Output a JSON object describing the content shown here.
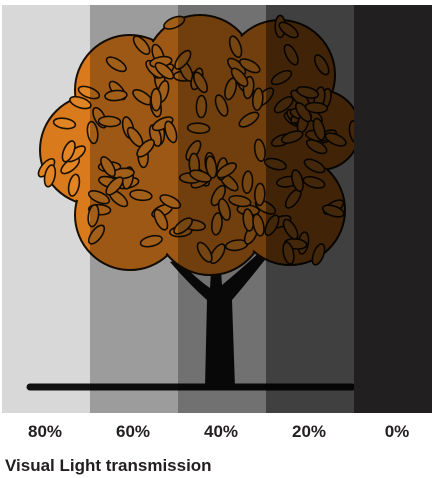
{
  "panels": [
    {
      "label": "80%"
    },
    {
      "label": "60%"
    },
    {
      "label": "40%"
    },
    {
      "label": "20%"
    },
    {
      "label": "0%"
    }
  ],
  "caption": "Visual Light transmission"
}
